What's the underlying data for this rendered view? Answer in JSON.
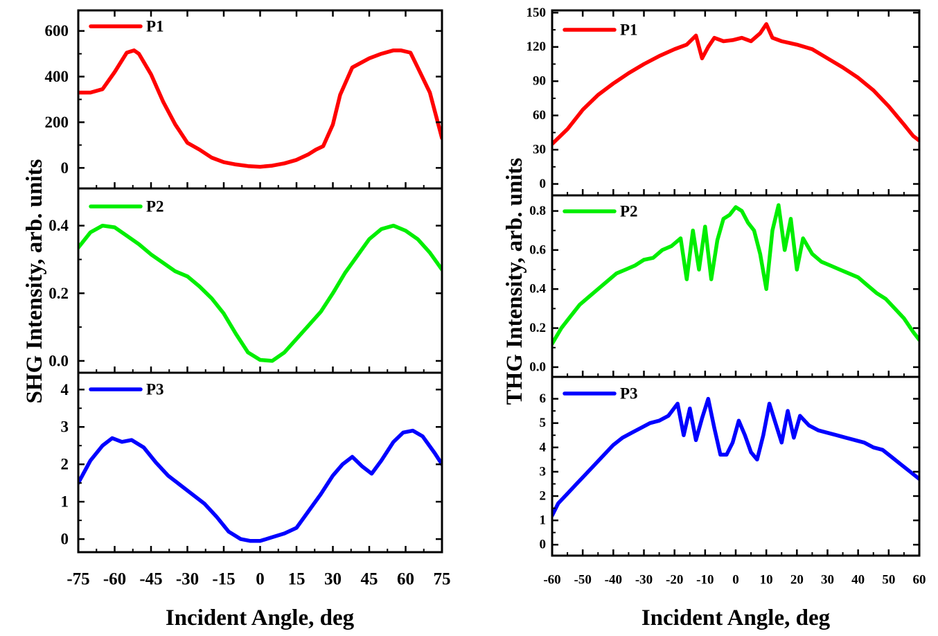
{
  "chart_data": [
    {
      "name": "shg",
      "type": "line",
      "ylabel": "SHG Intensity, arb. units",
      "xlabel": "Incident Angle, deg",
      "xlim": [
        -75,
        75
      ],
      "xticks": [
        -75,
        -60,
        -45,
        -30,
        -15,
        0,
        15,
        30,
        45,
        60,
        75
      ],
      "xtick_labels": [
        "-75",
        "-60",
        "-45",
        "-30",
        "-15",
        "0",
        "15",
        "30",
        "45",
        "60",
        "75"
      ],
      "panels": [
        {
          "legend": "P1",
          "color": "#ff0000",
          "ylim": [
            -90,
            690
          ],
          "yticks": [
            0,
            200,
            400,
            600
          ],
          "ytick_labels": [
            "0",
            "200",
            "400",
            "600"
          ],
          "x": [
            -75,
            -70,
            -65,
            -60,
            -55,
            -52,
            -50,
            -45,
            -40,
            -35,
            -30,
            -25,
            -20,
            -15,
            -10,
            -5,
            0,
            5,
            10,
            15,
            20,
            23,
            26,
            30,
            33,
            38,
            45,
            50,
            55,
            58,
            62,
            65,
            70,
            75
          ],
          "y": [
            330,
            330,
            345,
            420,
            505,
            515,
            500,
            410,
            290,
            190,
            110,
            80,
            45,
            25,
            15,
            8,
            5,
            10,
            20,
            35,
            60,
            80,
            95,
            190,
            320,
            440,
            480,
            500,
            515,
            515,
            505,
            440,
            330,
            130
          ]
        },
        {
          "legend": "P2",
          "color": "#00ee00",
          "ylim": [
            -0.035,
            0.51
          ],
          "yticks": [
            0.0,
            0.2,
            0.4
          ],
          "ytick_labels": [
            "0.0",
            "0.2",
            "0.4"
          ],
          "x": [
            -75,
            -70,
            -65,
            -60,
            -55,
            -50,
            -45,
            -40,
            -35,
            -30,
            -25,
            -20,
            -15,
            -10,
            -5,
            0,
            5,
            10,
            15,
            20,
            25,
            30,
            35,
            40,
            45,
            50,
            55,
            60,
            65,
            70,
            75
          ],
          "y": [
            0.335,
            0.38,
            0.4,
            0.395,
            0.37,
            0.345,
            0.315,
            0.29,
            0.265,
            0.25,
            0.22,
            0.185,
            0.14,
            0.08,
            0.025,
            0.003,
            0.0,
            0.025,
            0.065,
            0.105,
            0.145,
            0.2,
            0.26,
            0.31,
            0.36,
            0.39,
            0.4,
            0.385,
            0.36,
            0.32,
            0.27
          ]
        },
        {
          "legend": "P3",
          "color": "#0000ff",
          "ylim": [
            -0.35,
            4.45
          ],
          "yticks": [
            0,
            1,
            2,
            3,
            4
          ],
          "ytick_labels": [
            "0",
            "1",
            "2",
            "3",
            "4"
          ],
          "x": [
            -75,
            -70,
            -65,
            -61,
            -57,
            -53,
            -48,
            -43,
            -38,
            -33,
            -28,
            -23,
            -18,
            -13,
            -8,
            -4,
            0,
            5,
            10,
            15,
            20,
            25,
            30,
            34,
            38,
            42,
            46,
            50,
            55,
            59,
            63,
            67,
            72,
            75
          ],
          "y": [
            1.5,
            2.1,
            2.5,
            2.7,
            2.6,
            2.65,
            2.45,
            2.05,
            1.7,
            1.45,
            1.2,
            0.95,
            0.6,
            0.2,
            0.0,
            -0.05,
            -0.05,
            0.05,
            0.15,
            0.3,
            0.75,
            1.2,
            1.7,
            2.0,
            2.2,
            1.95,
            1.75,
            2.1,
            2.6,
            2.85,
            2.9,
            2.75,
            2.3,
            2.0
          ]
        }
      ]
    },
    {
      "name": "thg",
      "type": "line",
      "ylabel": "THG Intensity, arb. units",
      "xlabel": "Incident Angle, deg",
      "xlim": [
        -60,
        60
      ],
      "xticks": [
        -60,
        -50,
        -40,
        -30,
        -20,
        -10,
        0,
        10,
        20,
        30,
        40,
        50,
        60
      ],
      "xtick_labels": [
        "-60",
        "-50",
        "-40",
        "-30",
        "-20",
        "-10",
        "0",
        "10",
        "20",
        "30",
        "40",
        "50",
        "60"
      ],
      "panels": [
        {
          "legend": "P1",
          "color": "#ff0000",
          "ylim": [
            -10,
            152
          ],
          "yticks": [
            0,
            30,
            60,
            90,
            120,
            150
          ],
          "ytick_labels": [
            "0",
            "30",
            "60",
            "90",
            "120",
            "150"
          ],
          "x": [
            -60,
            -55,
            -50,
            -45,
            -40,
            -35,
            -30,
            -25,
            -20,
            -16,
            -13,
            -11,
            -9,
            -7,
            -4,
            -1,
            2,
            5,
            8,
            10,
            12,
            15,
            20,
            25,
            30,
            35,
            40,
            45,
            50,
            55,
            58,
            60
          ],
          "y": [
            35,
            48,
            65,
            78,
            88,
            97,
            105,
            112,
            118,
            122,
            130,
            110,
            120,
            128,
            125,
            126,
            128,
            125,
            132,
            140,
            128,
            125,
            122,
            118,
            110,
            102,
            93,
            82,
            68,
            52,
            42,
            38
          ]
        },
        {
          "legend": "P2",
          "color": "#00ee00",
          "ylim": [
            -0.05,
            0.88
          ],
          "yticks": [
            0.0,
            0.2,
            0.4,
            0.6,
            0.8
          ],
          "ytick_labels": [
            "0.0",
            "0.2",
            "0.4",
            "0.6",
            "0.8"
          ],
          "x": [
            -60,
            -57,
            -54,
            -51,
            -48,
            -45,
            -42,
            -39,
            -36,
            -33,
            -30,
            -27,
            -24,
            -21,
            -18,
            -16,
            -14,
            -12,
            -10,
            -8,
            -6,
            -4,
            -2,
            0,
            2,
            4,
            6,
            8,
            10,
            12,
            14,
            16,
            18,
            20,
            22,
            25,
            28,
            31,
            34,
            37,
            40,
            43,
            46,
            49,
            52,
            55,
            58,
            60
          ],
          "y": [
            0.12,
            0.2,
            0.26,
            0.32,
            0.36,
            0.4,
            0.44,
            0.48,
            0.5,
            0.52,
            0.55,
            0.56,
            0.6,
            0.62,
            0.66,
            0.45,
            0.7,
            0.5,
            0.72,
            0.45,
            0.65,
            0.76,
            0.78,
            0.82,
            0.8,
            0.74,
            0.7,
            0.58,
            0.4,
            0.7,
            0.83,
            0.6,
            0.76,
            0.5,
            0.66,
            0.58,
            0.54,
            0.52,
            0.5,
            0.48,
            0.46,
            0.42,
            0.38,
            0.35,
            0.3,
            0.25,
            0.18,
            0.14
          ]
        },
        {
          "legend": "P3",
          "color": "#0000ff",
          "ylim": [
            -0.45,
            6.9
          ],
          "yticks": [
            0,
            1,
            2,
            3,
            4,
            5,
            6
          ],
          "ytick_labels": [
            "0",
            "1",
            "2",
            "3",
            "4",
            "5",
            "6"
          ],
          "x": [
            -60,
            -58,
            -55,
            -52,
            -49,
            -46,
            -43,
            -40,
            -37,
            -34,
            -31,
            -28,
            -25,
            -22,
            -19,
            -17,
            -15,
            -13,
            -11,
            -9,
            -7,
            -5,
            -3,
            -1,
            1,
            3,
            5,
            7,
            9,
            11,
            13,
            15,
            17,
            19,
            21,
            24,
            27,
            30,
            33,
            36,
            39,
            42,
            45,
            48,
            51,
            54,
            57,
            60
          ],
          "y": [
            1.2,
            1.7,
            2.1,
            2.5,
            2.9,
            3.3,
            3.7,
            4.1,
            4.4,
            4.6,
            4.8,
            5.0,
            5.1,
            5.3,
            5.8,
            4.5,
            5.6,
            4.3,
            5.2,
            6.0,
            4.8,
            3.7,
            3.7,
            4.2,
            5.1,
            4.5,
            3.8,
            3.5,
            4.5,
            5.8,
            5.0,
            4.2,
            5.5,
            4.4,
            5.3,
            4.9,
            4.7,
            4.6,
            4.5,
            4.4,
            4.3,
            4.2,
            4.0,
            3.9,
            3.6,
            3.3,
            3.0,
            2.7
          ]
        }
      ]
    }
  ]
}
